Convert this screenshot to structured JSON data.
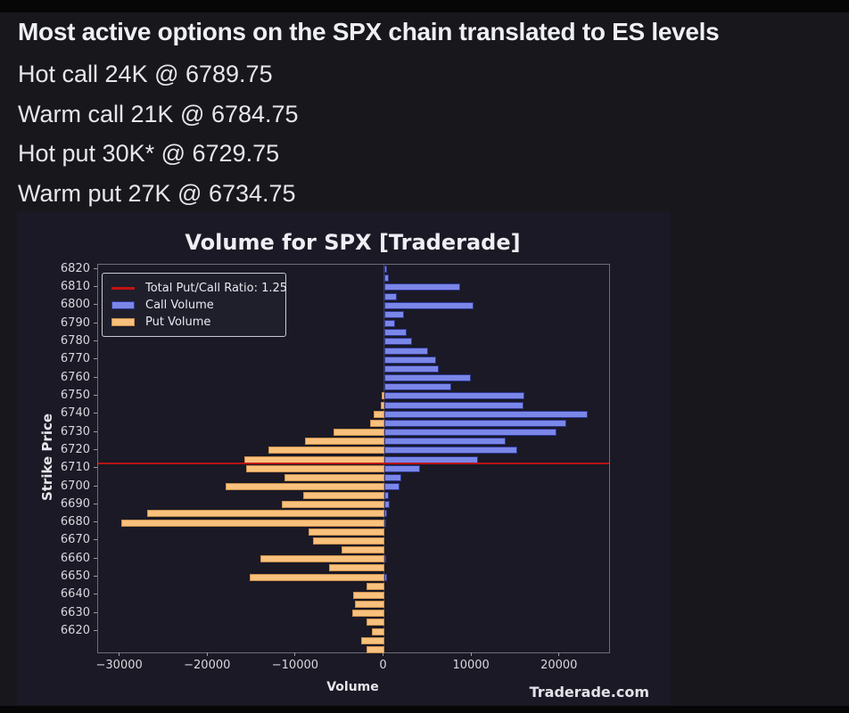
{
  "post": {
    "title": "Most active options on the SPX chain translated to ES levels",
    "lines": [
      "Hot call 24K @ 6789.75",
      "Warm call 21K @ 6784.75",
      "Hot put 30K* @ 6729.75",
      "Warm put 27K @ 6734.75"
    ]
  },
  "chart_data": {
    "type": "bar",
    "orientation": "horizontal-diverging",
    "title": "Volume for SPX [Traderade]",
    "xlabel": "Volume",
    "ylabel": "Strike Price",
    "watermark": "Traderade.com",
    "legend_position": "upper-left",
    "grid": false,
    "legend": [
      {
        "label": "Total Put/Call Ratio: 1.25",
        "type": "line"
      },
      {
        "label": "Call Volume",
        "type": "patch"
      },
      {
        "label": "Put Volume",
        "type": "patch"
      }
    ],
    "colors": {
      "call_fill": "#7b87e8",
      "call_edge": "#2e3790",
      "put_fill": "#f9c17c",
      "put_edge": "#c98f4e",
      "ratio_line": "#c01414",
      "figure_background": "#1a1925",
      "page_background": "#18181c"
    },
    "xlim": [
      -32500,
      25600
    ],
    "ylim": [
      6608.5,
      6822.5
    ],
    "x_ticks": [
      {
        "v": -30000,
        "label": "−30000"
      },
      {
        "v": -20000,
        "label": "−20000"
      },
      {
        "v": -10000,
        "label": "−10000"
      },
      {
        "v": 0,
        "label": "0"
      },
      {
        "v": 10000,
        "label": "10000"
      },
      {
        "v": 20000,
        "label": "20000"
      }
    ],
    "y_ticks": [
      6820,
      6810,
      6800,
      6790,
      6780,
      6770,
      6760,
      6750,
      6740,
      6730,
      6720,
      6710,
      6700,
      6690,
      6680,
      6670,
      6660,
      6650,
      6640,
      6630,
      6620
    ],
    "ratio_line_strike": 6713,
    "series": {
      "strikes": [
        6820,
        6815,
        6810,
        6805,
        6800,
        6795,
        6790,
        6785,
        6780,
        6775,
        6770,
        6765,
        6760,
        6755,
        6750,
        6745,
        6740,
        6735,
        6730,
        6725,
        6720,
        6715,
        6710,
        6705,
        6700,
        6695,
        6690,
        6685,
        6680,
        6675,
        6670,
        6665,
        6660,
        6655,
        6650,
        6645,
        6640,
        6635,
        6630,
        6625,
        6620,
        6615,
        6610
      ],
      "call_volume": [
        400,
        550,
        8700,
        1500,
        10200,
        2300,
        1300,
        2600,
        3200,
        5000,
        5900,
        6200,
        9900,
        7700,
        16000,
        15900,
        23200,
        20700,
        19600,
        13800,
        15200,
        10700,
        4100,
        2000,
        1800,
        550,
        700,
        400,
        250,
        0,
        0,
        0,
        250,
        0,
        350,
        0,
        0,
        0,
        0,
        0,
        0,
        0,
        0
      ],
      "put_volume": [
        0,
        0,
        0,
        0,
        0,
        0,
        0,
        0,
        0,
        0,
        0,
        0,
        0,
        0,
        300,
        400,
        1200,
        1600,
        5700,
        9000,
        13100,
        15900,
        15700,
        11300,
        18000,
        9200,
        11650,
        26900,
        29900,
        8600,
        8100,
        4800,
        14000,
        6200,
        15300,
        2000,
        3500,
        3300,
        3600,
        1950,
        1400,
        2600,
        2000
      ]
    }
  }
}
